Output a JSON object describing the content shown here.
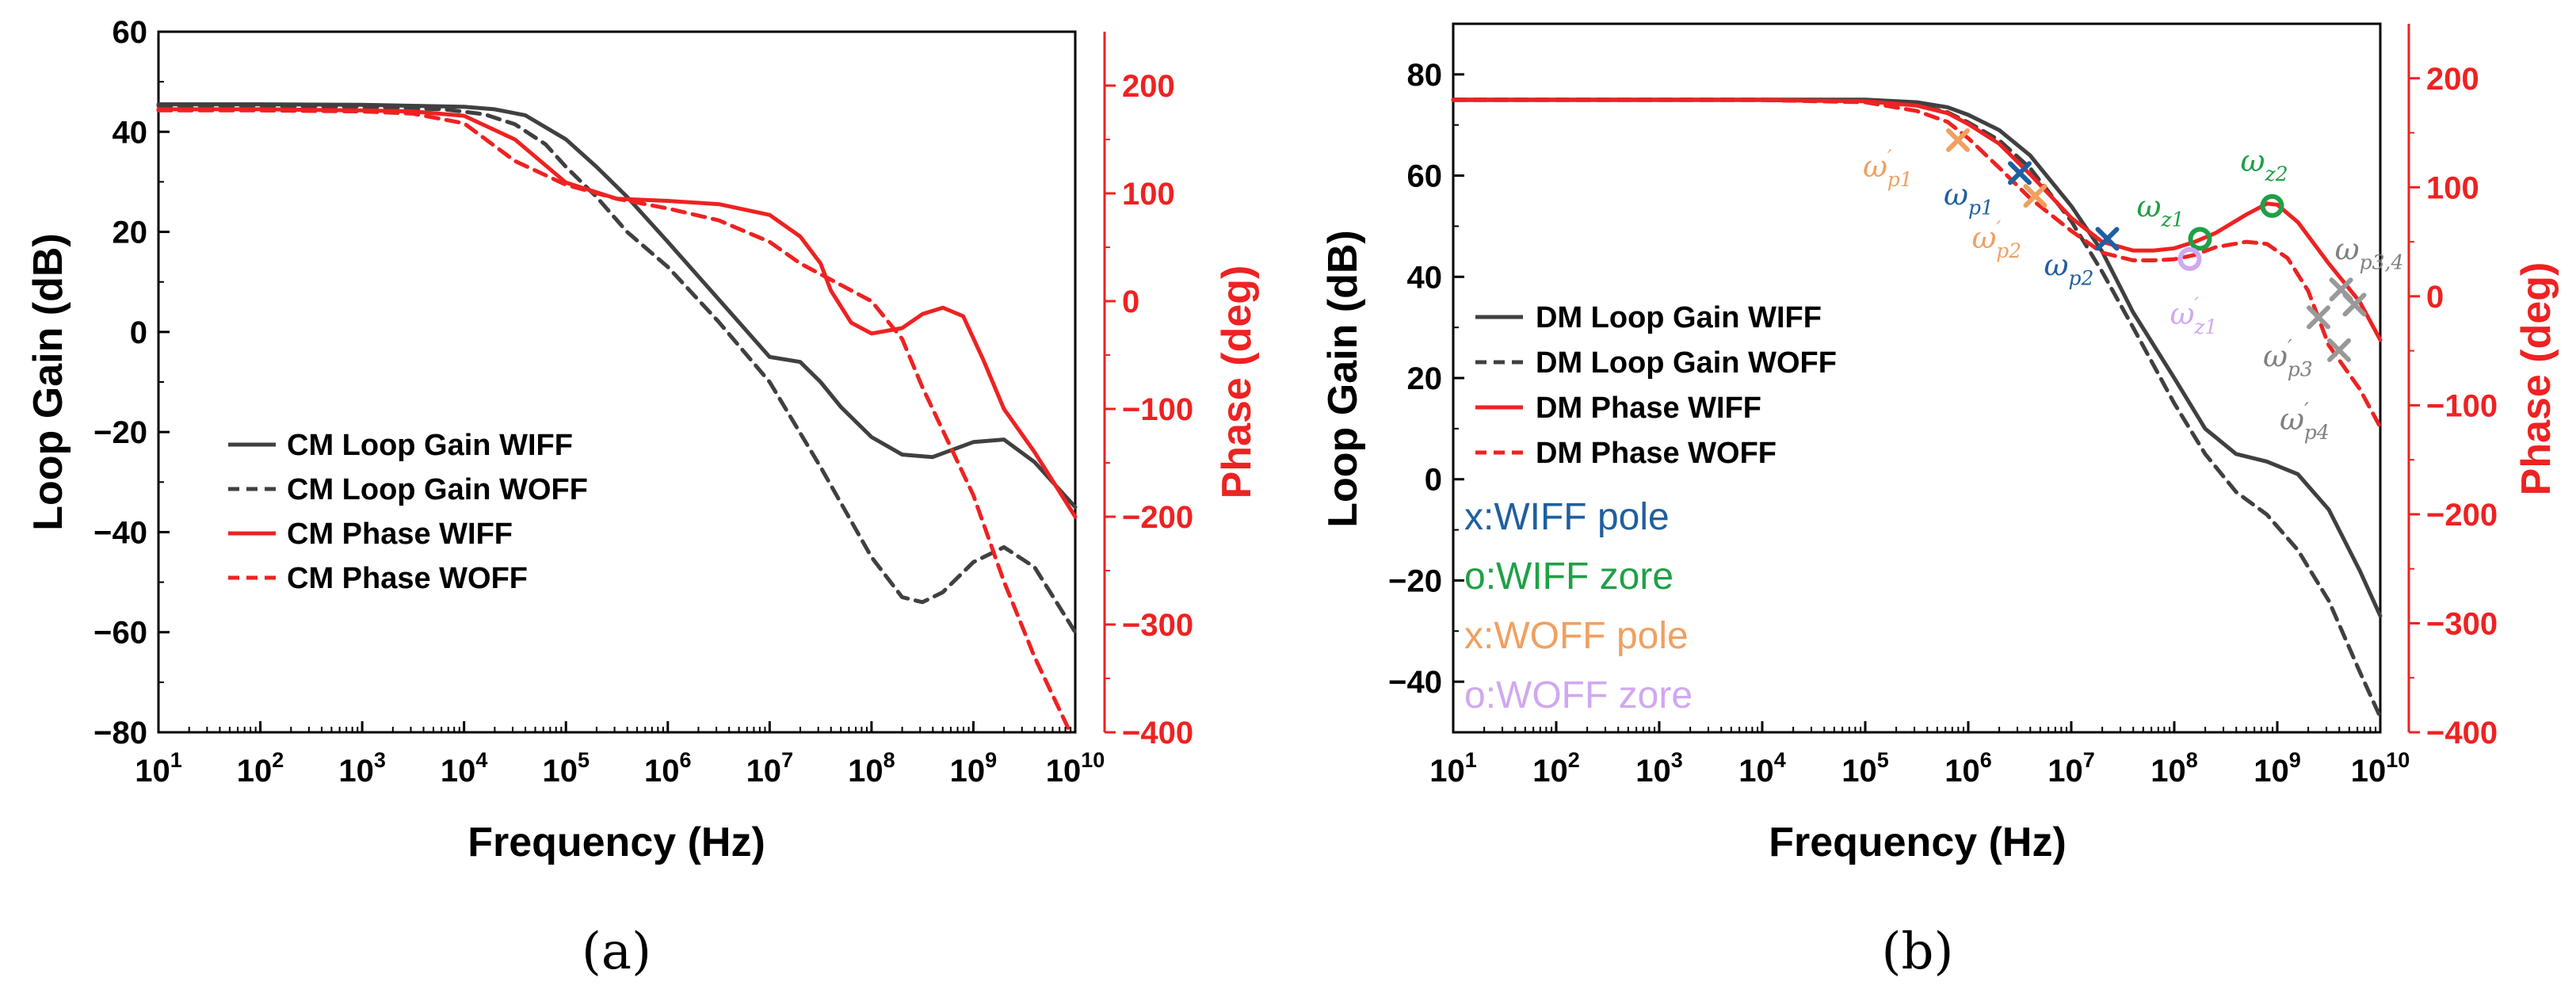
{
  "colors": {
    "gain": "#404040",
    "phase": "#ee2222",
    "wiff_pole": "#1f5fa0",
    "wiff_zero": "#1fa046",
    "woff_pole": "#f0a060",
    "woff_zero": "#d0a8f0",
    "prime_tick": "#999999"
  },
  "chart_data": [
    {
      "id": "a",
      "type": "line",
      "panel_label": "(a)",
      "xlabel": "Frequency (Hz)",
      "ylabel": "Loop Gain (dB)",
      "y2label": "Phase (deg)",
      "xscale": "log",
      "xlim_exp": [
        1,
        10
      ],
      "x_ticks": [
        1,
        2,
        3,
        4,
        5,
        6,
        7,
        8,
        9,
        10
      ],
      "ylim": [
        -80,
        60
      ],
      "y_ticks": [
        -80,
        -60,
        -40,
        -20,
        0,
        20,
        40,
        60
      ],
      "y2lim": [
        -400,
        250
      ],
      "y2_ticks": [
        -400,
        -300,
        -200,
        -100,
        0,
        100,
        200
      ],
      "legend_position": "lower-left",
      "series": [
        {
          "name": "CM Loop Gain WIFF",
          "axis": "left",
          "style": "solid",
          "color": "gain",
          "x": [
            1,
            2,
            3,
            4,
            4.3,
            4.6,
            5,
            5.3,
            5.6,
            6,
            6.5,
            7,
            7.3,
            7.5,
            7.7,
            8,
            8.3,
            8.6,
            9,
            9.3,
            9.6,
            10
          ],
          "y": [
            45.5,
            45.5,
            45.4,
            45,
            44.5,
            43.3,
            38.5,
            33,
            27,
            18,
            6.5,
            -5,
            -6,
            -10,
            -15,
            -21,
            -24.5,
            -25,
            -22,
            -21.5,
            -26,
            -35
          ]
        },
        {
          "name": "CM Loop Gain WOFF",
          "axis": "left",
          "style": "dashed",
          "color": "gain",
          "x": [
            1,
            2,
            3,
            3.8,
            4.2,
            4.5,
            4.8,
            5,
            5.3,
            5.6,
            6,
            6.5,
            7,
            7.5,
            8,
            8.3,
            8.5,
            8.7,
            9,
            9.3,
            9.6,
            10
          ],
          "y": [
            45.2,
            45.2,
            45,
            44.5,
            43.5,
            41.5,
            37.5,
            33,
            27,
            20,
            13,
            2,
            -10,
            -27,
            -45,
            -53,
            -54,
            -52,
            -46,
            -43,
            -47,
            -60
          ]
        },
        {
          "name": "CM Phase WIFF",
          "axis": "right",
          "style": "solid",
          "color": "phase",
          "x": [
            1,
            2,
            3,
            3.5,
            4,
            4.5,
            5,
            5.5,
            6,
            6.5,
            7,
            7.3,
            7.5,
            7.6,
            7.8,
            8,
            8.3,
            8.5,
            8.7,
            8.9,
            9.1,
            9.3,
            9.6,
            10
          ],
          "y": [
            178,
            178,
            177,
            176,
            172,
            150,
            110,
            95,
            93,
            90,
            80,
            60,
            35,
            10,
            -20,
            -30,
            -25,
            -12,
            -6,
            -14,
            -55,
            -100,
            -140,
            -200
          ]
        },
        {
          "name": "CM Phase WOFF",
          "axis": "right",
          "style": "dashed",
          "color": "phase",
          "x": [
            1,
            2,
            3,
            3.5,
            4,
            4.5,
            5,
            5.5,
            6,
            6.5,
            7,
            7.3,
            7.7,
            8,
            8.3,
            8.5,
            8.7,
            9,
            9.3,
            9.6,
            9.95
          ],
          "y": [
            177,
            177,
            176,
            174,
            165,
            130,
            108,
            95,
            86,
            75,
            55,
            35,
            15,
            0,
            -35,
            -80,
            -120,
            -180,
            -260,
            -330,
            -400
          ]
        }
      ]
    },
    {
      "id": "b",
      "type": "line",
      "panel_label": "(b)",
      "xlabel": "Frequency (Hz)",
      "ylabel": "Loop Gain (dB)",
      "y2label": "Phase (deg)",
      "xscale": "log",
      "xlim_exp": [
        1,
        10
      ],
      "x_ticks": [
        1,
        2,
        3,
        4,
        5,
        6,
        7,
        8,
        9,
        10
      ],
      "ylim": [
        -50,
        90
      ],
      "y_ticks": [
        -40,
        -20,
        0,
        20,
        40,
        60,
        80
      ],
      "y2lim": [
        -400,
        250
      ],
      "y2_ticks": [
        -400,
        -300,
        -200,
        -100,
        0,
        100,
        200
      ],
      "legend_position": "middle-left",
      "series": [
        {
          "name": "DM Loop Gain WIFF",
          "axis": "left",
          "style": "solid",
          "color": "gain",
          "x": [
            1,
            2,
            3,
            4,
            5,
            5.5,
            5.8,
            6,
            6.3,
            6.6,
            7,
            7.3,
            7.6,
            8,
            8.3,
            8.6,
            8.9,
            9.2,
            9.5,
            9.8,
            10
          ],
          "y": [
            75,
            75,
            75,
            75,
            75,
            74.5,
            73.5,
            72,
            69,
            64,
            54,
            45,
            33,
            20,
            10,
            5,
            3.5,
            1,
            -6,
            -18,
            -27
          ]
        },
        {
          "name": "DM Loop Gain WOFF",
          "axis": "left",
          "style": "dashed",
          "color": "gain",
          "x": [
            1,
            2,
            3,
            4,
            5,
            5.5,
            5.8,
            6,
            6.3,
            6.6,
            7,
            7.3,
            7.6,
            8,
            8.3,
            8.6,
            8.9,
            9.2,
            9.5,
            9.8,
            10
          ],
          "y": [
            75,
            75,
            75,
            75,
            74.8,
            74,
            72.5,
            70.5,
            67,
            61.5,
            51,
            41,
            30,
            15,
            5,
            -2.5,
            -7,
            -14,
            -24,
            -38,
            -47
          ]
        },
        {
          "name": "DM Phase WIFF",
          "axis": "right",
          "style": "solid",
          "color": "phase",
          "x": [
            1,
            2,
            3,
            4,
            5,
            5.5,
            5.8,
            6,
            6.3,
            6.6,
            7,
            7.3,
            7.6,
            7.8,
            8,
            8.2,
            8.4,
            8.7,
            8.9,
            9,
            9.2,
            9.5,
            9.8,
            10
          ],
          "y": [
            180,
            180,
            180,
            180,
            179,
            175,
            168,
            158,
            140,
            112,
            72,
            50,
            42,
            42,
            44,
            50,
            58,
            75,
            85,
            84,
            68,
            30,
            -5,
            -40
          ]
        },
        {
          "name": "DM Phase WOFF",
          "axis": "right",
          "style": "dashed",
          "color": "phase",
          "x": [
            1,
            2,
            3,
            4,
            5,
            5.5,
            5.8,
            6,
            6.3,
            6.6,
            7,
            7.3,
            7.6,
            7.8,
            8,
            8.2,
            8.4,
            8.7,
            8.9,
            9.1,
            9.3,
            9.5,
            9.8,
            10
          ],
          "y": [
            180,
            180,
            180,
            180,
            178,
            170,
            160,
            145,
            118,
            90,
            60,
            40,
            33,
            33,
            34,
            38,
            45,
            50,
            48,
            35,
            5,
            -45,
            -85,
            -120
          ]
        }
      ],
      "markers": [
        {
          "label": "ω′p1",
          "base": "ω",
          "sub": "p1",
          "prime": true,
          "kind": "pole",
          "group": "woff_pole",
          "x": 5.9,
          "axis": "left",
          "y": 67
        },
        {
          "label": "ωp1",
          "base": "ω",
          "sub": "p1",
          "prime": false,
          "kind": "pole",
          "group": "wiff_pole",
          "x": 6.5,
          "axis": "left",
          "y": 60.5
        },
        {
          "label": "ω′p2",
          "base": "ω",
          "sub": "p2",
          "prime": true,
          "kind": "pole",
          "group": "woff_pole",
          "x": 6.65,
          "axis": "left",
          "y": 56
        },
        {
          "label": "ωp2",
          "base": "ω",
          "sub": "p2",
          "prime": false,
          "kind": "pole",
          "group": "wiff_pole",
          "x": 7.35,
          "axis": "left",
          "y": 47.5
        },
        {
          "label": "ωz1",
          "base": "ω",
          "sub": "z1",
          "prime": false,
          "kind": "zero",
          "group": "wiff_zero",
          "x": 8.25,
          "axis": "left",
          "y": 47.5
        },
        {
          "label": "ω′z1",
          "base": "ω",
          "sub": "z1",
          "prime": true,
          "kind": "zero",
          "group": "woff_zero",
          "x": 8.15,
          "axis": "left",
          "y": 43.5
        },
        {
          "label": "ωz2",
          "base": "ω",
          "sub": "z2",
          "prime": false,
          "kind": "zero",
          "group": "wiff_zero",
          "x": 8.95,
          "axis": "left",
          "y": 54
        },
        {
          "label": "ω′p3",
          "base": "ω",
          "sub": "p3",
          "prime": true,
          "kind": "pole",
          "group": "prime_tick",
          "x": 9.4,
          "axis": "left",
          "y": 32
        },
        {
          "label": "ω′p4",
          "base": "ω",
          "sub": "p4",
          "prime": true,
          "kind": "pole",
          "group": "prime_tick",
          "x": 9.6,
          "axis": "left",
          "y": 25.5
        },
        {
          "label": "ωp3,4",
          "base": "ω",
          "sub": "p3,4",
          "prime": false,
          "kind": "pole",
          "group": "prime_tick",
          "x": 9.62,
          "axis": "left",
          "y": 37.5
        },
        {
          "label": "",
          "kind": "pole",
          "group": "prime_tick",
          "x": 9.75,
          "axis": "left",
          "y": 34.5
        }
      ],
      "marker_legend": [
        {
          "text": "x:WIFF pole",
          "group": "wiff_pole"
        },
        {
          "text": "o:WIFF zore",
          "group": "wiff_zero"
        },
        {
          "text": "x:WOFF pole",
          "group": "woff_pole"
        },
        {
          "text": "o:WOFF zore",
          "group": "woff_zero"
        }
      ]
    }
  ]
}
